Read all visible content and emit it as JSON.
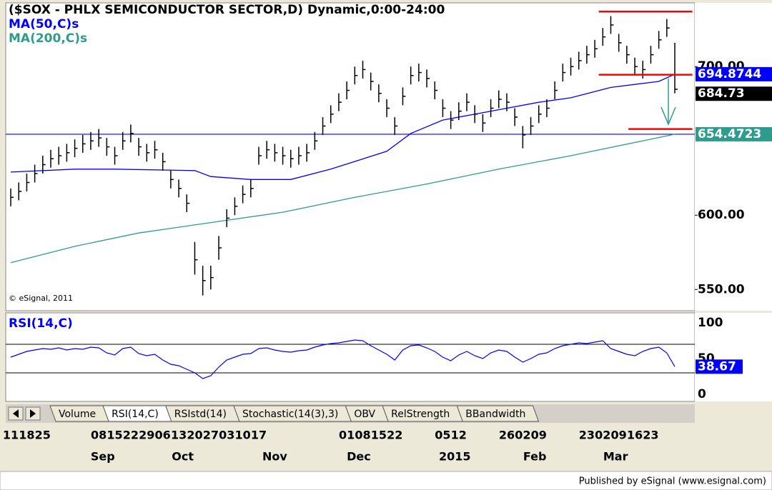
{
  "chart_data": [
    {
      "type": "ohlc",
      "title": "($SOX - PHLX SEMICONDUCTOR SECTOR,D) Dynamic,0:00-24:00",
      "copyright": "© eSignal, 2011",
      "high": [
        618,
        622,
        628,
        634,
        640,
        644,
        646,
        648,
        651,
        654,
        656,
        658,
        652,
        646,
        656,
        661,
        652,
        648,
        650,
        642,
        630,
        624,
        614,
        582,
        566,
        566,
        586,
        604,
        612,
        620,
        624,
        646,
        650,
        648,
        646,
        644,
        646,
        648,
        656,
        666,
        674,
        682,
        690,
        700,
        704,
        696,
        688,
        678,
        666,
        686,
        700,
        702,
        698,
        690,
        678,
        670,
        676,
        682,
        674,
        668,
        678,
        684,
        682,
        672,
        660,
        666,
        674,
        678,
        690,
        702,
        706,
        710,
        714,
        718,
        726,
        734,
        722,
        714,
        706,
        704,
        714,
        724,
        732,
        716
      ],
      "low": [
        606,
        610,
        616,
        622,
        628,
        632,
        634,
        636,
        639,
        642,
        644,
        646,
        640,
        634,
        644,
        649,
        640,
        636,
        638,
        630,
        618,
        612,
        602,
        560,
        546,
        550,
        570,
        592,
        600,
        608,
        612,
        634,
        638,
        636,
        634,
        632,
        634,
        636,
        644,
        654,
        662,
        670,
        678,
        688,
        692,
        684,
        676,
        666,
        654,
        674,
        688,
        690,
        686,
        678,
        666,
        658,
        664,
        670,
        662,
        656,
        666,
        672,
        670,
        660,
        645,
        654,
        662,
        666,
        678,
        690,
        694,
        698,
        702,
        706,
        714,
        722,
        710,
        702,
        694,
        692,
        702,
        712,
        720,
        682
      ],
      "close": [
        612,
        616,
        622,
        628,
        634,
        638,
        640,
        642,
        645,
        648,
        650,
        652,
        646,
        640,
        650,
        655,
        646,
        642,
        644,
        636,
        624,
        618,
        608,
        570,
        556,
        558,
        578,
        598,
        606,
        614,
        618,
        640,
        644,
        642,
        640,
        638,
        640,
        642,
        650,
        660,
        668,
        676,
        684,
        694,
        698,
        690,
        682,
        672,
        660,
        680,
        694,
        696,
        692,
        684,
        672,
        664,
        670,
        676,
        668,
        662,
        672,
        678,
        676,
        666,
        654,
        660,
        668,
        672,
        684,
        696,
        700,
        704,
        708,
        712,
        720,
        728,
        716,
        708,
        700,
        698,
        708,
        718,
        726,
        684.73
      ],
      "close_label": "684.73",
      "xlim": [
        -0.45,
        85.5
      ],
      "ylim": [
        535.7,
        742.9
      ],
      "yticks": [
        {
          "value": 550,
          "label": "550.00"
        },
        {
          "value": 600,
          "label": "600.00"
        },
        {
          "value": 700,
          "label": "700.00"
        }
      ],
      "xticks": [
        {
          "value": 0,
          "label": "11"
        },
        {
          "value": 2,
          "label": "18"
        },
        {
          "value": 4,
          "label": "25"
        },
        {
          "value": 11,
          "label": "08"
        },
        {
          "value": 13,
          "label": "15"
        },
        {
          "value": 15,
          "label": "22"
        },
        {
          "value": 17,
          "label": "29"
        },
        {
          "value": 19,
          "label": "06"
        },
        {
          "value": 21,
          "label": "13"
        },
        {
          "value": 23,
          "label": "20"
        },
        {
          "value": 25,
          "label": "27"
        },
        {
          "value": 27,
          "label": "03"
        },
        {
          "value": 29,
          "label": "10"
        },
        {
          "value": 31,
          "label": "17"
        },
        {
          "value": 42,
          "label": "01"
        },
        {
          "value": 44,
          "label": "08"
        },
        {
          "value": 46,
          "label": "15"
        },
        {
          "value": 48,
          "label": "22"
        },
        {
          "value": 54,
          "label": "05"
        },
        {
          "value": 56,
          "label": "12"
        },
        {
          "value": 62,
          "label": "26"
        },
        {
          "value": 64,
          "label": "02"
        },
        {
          "value": 66,
          "label": "09"
        },
        {
          "value": 72,
          "label": "23"
        },
        {
          "value": 74,
          "label": "02"
        },
        {
          "value": 76,
          "label": "09"
        },
        {
          "value": 78,
          "label": "16"
        },
        {
          "value": 80,
          "label": "23"
        }
      ],
      "month_labels": [
        {
          "value": 11.5,
          "label": "Sep"
        },
        {
          "value": 21.5,
          "label": "Oct"
        },
        {
          "value": 33,
          "label": "Nov"
        },
        {
          "value": 43.5,
          "label": "Dec"
        },
        {
          "value": 55.5,
          "label": "2015"
        },
        {
          "value": 65.5,
          "label": "Feb"
        },
        {
          "value": 75.6,
          "label": "Mar"
        }
      ],
      "series": [
        {
          "name": "MA(50,C)s",
          "color": "#0000ff",
          "x": [
            0,
            8,
            13,
            23,
            25,
            30,
            35,
            40,
            47,
            50,
            54,
            61,
            66,
            70,
            75,
            81,
            83
          ],
          "values": [
            629,
            631,
            631,
            630,
            626,
            624,
            624,
            631,
            643,
            655,
            664,
            671,
            676,
            679,
            686,
            690,
            694.8744
          ],
          "last_label": "694.8744"
        },
        {
          "name": "MA(200,C)s",
          "color": "#2e9c8c",
          "x": [
            0,
            8,
            16,
            25,
            34,
            43,
            52,
            61,
            70,
            79,
            83
          ],
          "values": [
            568,
            579,
            588,
            595,
            602,
            612,
            621,
            631,
            640,
            650,
            654.4723
          ],
          "last_label": "654.4723"
        }
      ],
      "hline": {
        "value": 654.4723,
        "color": "#0000ff"
      },
      "levels": [
        {
          "value": 737,
          "x": [
            73.5,
            85.2
          ],
          "color": "#ff0000"
        },
        {
          "value": 694.5,
          "x": [
            73.5,
            85.2
          ],
          "color": "#ff0000"
        },
        {
          "value": 658,
          "x": [
            77.2,
            85.2
          ],
          "color": "#ff0000"
        }
      ]
    },
    {
      "type": "line",
      "title": "RSI(14,C)",
      "color": "#0000ff",
      "values": [
        52,
        56,
        60,
        62,
        64,
        63,
        65,
        62,
        64,
        63,
        66,
        65,
        58,
        55,
        64,
        66,
        57,
        54,
        56,
        48,
        42,
        40,
        35,
        30,
        22,
        26,
        38,
        48,
        52,
        56,
        57,
        64,
        65,
        62,
        60,
        59,
        61,
        62,
        66,
        69,
        71,
        72,
        74,
        76,
        75,
        68,
        62,
        56,
        48,
        62,
        68,
        69,
        65,
        60,
        52,
        47,
        55,
        60,
        54,
        50,
        58,
        62,
        60,
        52,
        45,
        50,
        56,
        58,
        64,
        68,
        70,
        72,
        71,
        73,
        75,
        64,
        60,
        56,
        54,
        60,
        64,
        66,
        58,
        38.67
      ],
      "last_label": "38.67",
      "ylim": [
        0,
        100
      ],
      "yticks": [
        100,
        50,
        0
      ],
      "levels": [
        70,
        30
      ]
    }
  ],
  "tabs": [
    "Volume",
    "RSI(14,C)",
    "RSIstd(14)",
    "Stochastic(14(3),3)",
    "OBV",
    "RelStrength",
    "BBandwidth"
  ],
  "footer": "Published by eSignal (www.esignal.com)"
}
